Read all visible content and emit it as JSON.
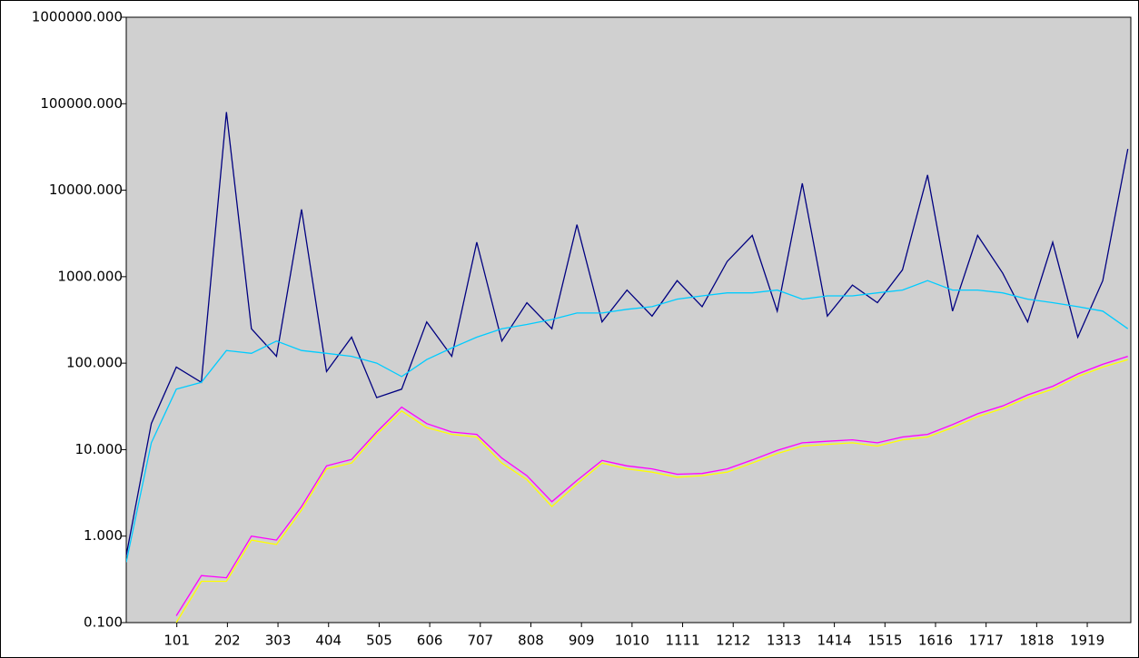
{
  "chart_data": {
    "type": "line",
    "log_y": true,
    "plot_background": "#d0d0d0",
    "xlim": [
      0,
      2006
    ],
    "ylim": [
      0.1,
      1000000
    ],
    "xticks": [
      101,
      202,
      303,
      404,
      505,
      606,
      707,
      808,
      909,
      1010,
      1111,
      1212,
      1313,
      1414,
      1515,
      1616,
      1717,
      1818,
      1919
    ],
    "yticks": [
      {
        "value": 0.1,
        "label": "0.100"
      },
      {
        "value": 1,
        "label": "1.000"
      },
      {
        "value": 10,
        "label": "10.000"
      },
      {
        "value": 100,
        "label": "100.000"
      },
      {
        "value": 1000,
        "label": "1000.000"
      },
      {
        "value": 10000,
        "label": "10000.000"
      },
      {
        "value": 100000,
        "label": "100000.000"
      },
      {
        "value": 1000000,
        "label": "1000000.000"
      }
    ],
    "x": [
      0,
      50,
      100,
      150,
      200,
      250,
      300,
      350,
      400,
      450,
      500,
      550,
      600,
      650,
      700,
      750,
      800,
      850,
      900,
      950,
      1000,
      1050,
      1100,
      1150,
      1200,
      1250,
      1300,
      1350,
      1400,
      1450,
      1500,
      1550,
      1600,
      1650,
      1700,
      1750,
      1800,
      1850,
      1900,
      1950,
      2000
    ],
    "series": [
      {
        "color": "#000080",
        "values": [
          0.6,
          20,
          90,
          60,
          80000,
          250,
          120,
          6000,
          80,
          200,
          40,
          50,
          300,
          120,
          2500,
          180,
          500,
          250,
          4000,
          300,
          700,
          350,
          900,
          450,
          1500,
          3000,
          400,
          12000,
          350,
          800,
          500,
          1200,
          15000,
          400,
          3000,
          1100,
          300,
          2500,
          200,
          900,
          30000
        ]
      },
      {
        "color": "#00ccff",
        "values": [
          0.5,
          12,
          50,
          60,
          140,
          130,
          180,
          140,
          130,
          120,
          100,
          70,
          110,
          150,
          200,
          250,
          280,
          320,
          380,
          380,
          420,
          450,
          550,
          600,
          650,
          650,
          700,
          550,
          600,
          600,
          650,
          700,
          900,
          700,
          700,
          650,
          550,
          500,
          450,
          400,
          250
        ]
      },
      {
        "color": "#ffff00",
        "values": [
          null,
          null,
          0.1,
          0.3,
          0.3,
          0.9,
          0.8,
          2,
          6,
          7,
          15,
          28,
          18,
          15,
          14,
          7,
          4.5,
          2.2,
          4,
          7,
          6,
          5.5,
          4.8,
          5,
          5.5,
          7,
          9,
          11,
          11.5,
          12,
          11,
          13,
          14,
          18,
          24,
          30,
          40,
          50,
          70,
          90,
          110
        ]
      },
      {
        "color": "#ff00ff",
        "values": [
          null,
          null,
          0.12,
          0.35,
          0.33,
          1,
          0.9,
          2.2,
          6.5,
          7.7,
          16,
          31,
          20,
          16,
          15,
          8,
          5,
          2.5,
          4.4,
          7.5,
          6.5,
          6,
          5.2,
          5.3,
          6,
          7.6,
          9.8,
          12,
          12.5,
          13,
          12,
          14,
          15,
          19.5,
          26,
          32,
          43,
          54,
          75,
          97,
          120
        ]
      }
    ]
  }
}
